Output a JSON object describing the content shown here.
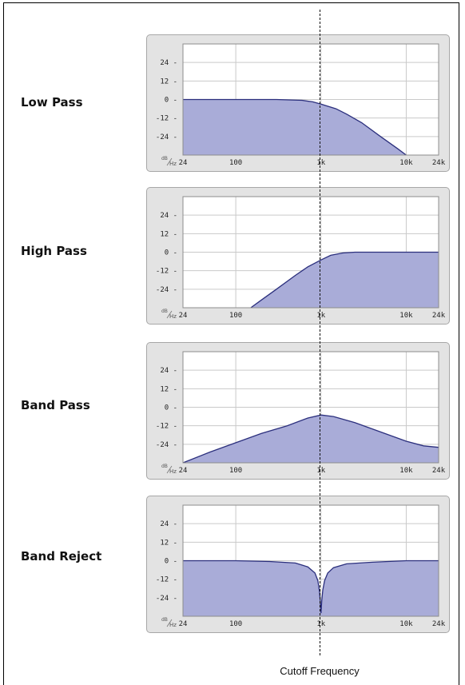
{
  "chart_data": [
    {
      "type": "area",
      "title": "Low Pass",
      "xscale": "log",
      "xlim": [
        24,
        24000
      ],
      "ylim": [
        -36,
        36
      ],
      "yticks": [
        24,
        12,
        0,
        -12,
        -24
      ],
      "ytick_labels": [
        "24",
        "12",
        "0",
        "-12",
        "-24"
      ],
      "xticks": [
        24,
        100,
        1000,
        10000,
        24000
      ],
      "xtick_labels": [
        "24",
        "100",
        "1k",
        "10k",
        "24k"
      ],
      "unit_label": {
        "top": "dB",
        "bottom": "Hz"
      },
      "grid": true,
      "x": [
        24,
        100,
        300,
        600,
        800,
        1000,
        1500,
        2000,
        3000,
        5000,
        8000,
        10000
      ],
      "y": [
        0,
        0,
        0,
        -0.5,
        -1.5,
        -3,
        -6,
        -9.5,
        -15,
        -24,
        -32,
        -36
      ]
    },
    {
      "type": "area",
      "title": "High Pass",
      "xscale": "log",
      "xlim": [
        24,
        24000
      ],
      "ylim": [
        -36,
        36
      ],
      "yticks": [
        24,
        12,
        0,
        -12,
        -24
      ],
      "ytick_labels": [
        "24",
        "12",
        "0",
        "-12",
        "-24"
      ],
      "xticks": [
        24,
        100,
        1000,
        10000,
        24000
      ],
      "xtick_labels": [
        "24",
        "100",
        "1k",
        "10k",
        "24k"
      ],
      "unit_label": {
        "top": "dB",
        "bottom": "Hz"
      },
      "grid": true,
      "x": [
        150,
        200,
        300,
        500,
        700,
        1000,
        1300,
        1800,
        2500,
        5000,
        10000,
        24000
      ],
      "y": [
        -36,
        -31,
        -24,
        -15,
        -9.5,
        -5,
        -2,
        -0.5,
        0,
        0,
        0,
        0
      ]
    },
    {
      "type": "area",
      "title": "Band Pass",
      "xscale": "log",
      "xlim": [
        24,
        24000
      ],
      "ylim": [
        -36,
        36
      ],
      "yticks": [
        24,
        12,
        0,
        -12,
        -24
      ],
      "ytick_labels": [
        "24",
        "12",
        "0",
        "-12",
        "-24"
      ],
      "xticks": [
        24,
        100,
        1000,
        10000,
        24000
      ],
      "xtick_labels": [
        "24",
        "100",
        "1k",
        "10k",
        "24k"
      ],
      "unit_label": {
        "top": "dB",
        "bottom": "Hz"
      },
      "grid": true,
      "x": [
        24,
        50,
        100,
        200,
        400,
        700,
        1000,
        1400,
        2500,
        5000,
        10000,
        16000,
        24000
      ],
      "y": [
        -36,
        -29,
        -23,
        -17,
        -12,
        -7,
        -5,
        -6,
        -10,
        -16,
        -22,
        -25,
        -26
      ]
    },
    {
      "type": "area",
      "title": "Band Reject",
      "xscale": "log",
      "xlim": [
        24,
        24000
      ],
      "ylim": [
        -36,
        36
      ],
      "yticks": [
        24,
        12,
        0,
        -12,
        -24
      ],
      "ytick_labels": [
        "24",
        "12",
        "0",
        "-12",
        "-24"
      ],
      "xticks": [
        24,
        100,
        1000,
        10000,
        24000
      ],
      "xtick_labels": [
        "24",
        "100",
        "1k",
        "10k",
        "24k"
      ],
      "unit_label": {
        "top": "dB",
        "bottom": "Hz"
      },
      "grid": true,
      "x": [
        24,
        100,
        250,
        500,
        700,
        850,
        920,
        960,
        980,
        1000,
        1020,
        1050,
        1100,
        1200,
        1400,
        2000,
        4000,
        10000,
        24000
      ],
      "y": [
        0,
        0,
        -0.5,
        -1.5,
        -4,
        -8,
        -13,
        -20,
        -26,
        -34,
        -26,
        -19,
        -13,
        -8,
        -4.5,
        -2,
        -1,
        0,
        0
      ]
    }
  ],
  "annotation": {
    "cutoff_label": "Cutoff Frequency"
  }
}
